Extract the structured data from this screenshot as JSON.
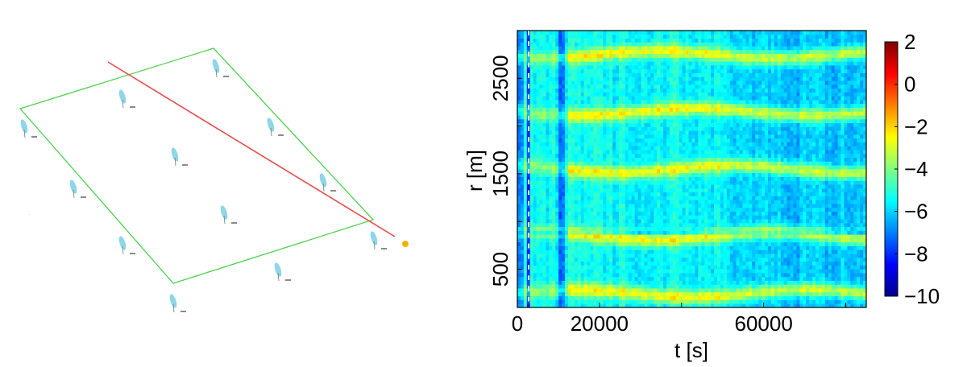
{
  "chart_data": [
    {
      "type": "diagram",
      "description_visible_labels_illegible": true,
      "turbines": [
        {
          "label": "",
          "x": 30,
          "y": 165
        },
        {
          "label": "",
          "x": 152,
          "y": 128
        },
        {
          "label": "",
          "x": 268,
          "y": 90
        },
        {
          "label": "",
          "x": 217,
          "y": 200
        },
        {
          "label": "",
          "x": 336,
          "y": 163
        },
        {
          "label": "",
          "x": 91,
          "y": 240
        },
        {
          "label": "",
          "x": 278,
          "y": 272
        },
        {
          "label": "",
          "x": 401,
          "y": 232
        },
        {
          "label": "",
          "x": 152,
          "y": 310
        },
        {
          "label": "",
          "x": 345,
          "y": 343
        },
        {
          "label": "",
          "x": 464,
          "y": 304
        },
        {
          "label": "",
          "x": 215,
          "y": 382
        }
      ],
      "colors": {
        "boundary": "#4cd04c",
        "line": "#e84a4a",
        "turbine": "#8ed6e8",
        "lidar": "#f0b400"
      }
    },
    {
      "type": "heatmap",
      "title": "",
      "xlabel": "t [s]",
      "ylabel": "r [m]",
      "xlim": [
        0,
        85000
      ],
      "ylim": [
        100,
        3000
      ],
      "xticks": [
        0,
        20000,
        60000
      ],
      "xtick_labels": [
        "0",
        "20000",
        "60000"
      ],
      "yticks": [
        500,
        1500,
        2500
      ],
      "ytick_labels": [
        "500",
        "1500",
        "2500"
      ],
      "colorbar": {
        "min": -10,
        "max": 2,
        "ticks": [
          2,
          0,
          -2,
          -4,
          -6,
          -8,
          -10
        ],
        "tick_labels": [
          "2",
          "0",
          "−2",
          "−4",
          "−6",
          "−8",
          "−10"
        ]
      },
      "colormap": "jet",
      "bands_r": [
        250,
        850,
        1550,
        2150,
        2750
      ],
      "band_peak": -2.5,
      "background_level": -5.5
    }
  ]
}
